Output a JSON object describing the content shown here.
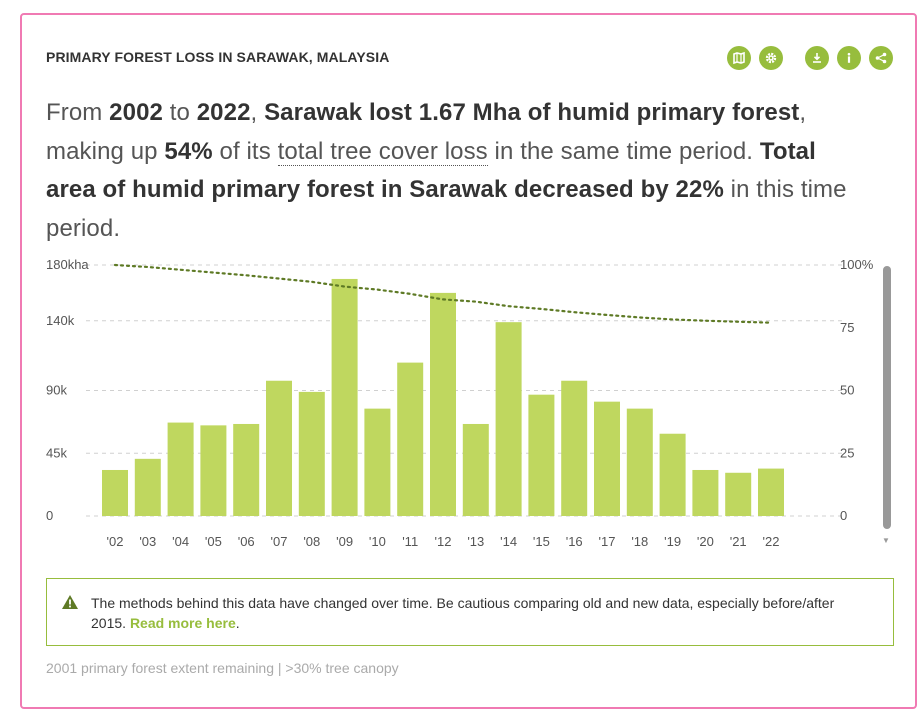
{
  "widget": {
    "title": "PRIMARY FOREST LOSS IN SARAWAK, MALAYSIA",
    "toolbar": [
      {
        "icon": "map-icon",
        "label": "map"
      },
      {
        "icon": "gear-icon",
        "label": "settings"
      },
      {
        "icon": "download-icon",
        "label": "download"
      },
      {
        "icon": "info-icon",
        "label": "info"
      },
      {
        "icon": "share-icon",
        "label": "share"
      }
    ]
  },
  "summary": {
    "p1": "From ",
    "b1": "2002",
    "p2": " to ",
    "b2": "2022",
    "p3": ", ",
    "b3": "Sarawak lost 1.67 Mha of humid primary forest",
    "p4": ", making up ",
    "b4": "54%",
    "p5": " of its ",
    "link": "total tree cover loss",
    "p6": " in the same time period. ",
    "b5": "Total area of humid primary forest in Sarawak decreased by 22%",
    "p7": " in this time period."
  },
  "chart_data": {
    "type": "bar",
    "categories": [
      "'02",
      "'03",
      "'04",
      "'05",
      "'06",
      "'07",
      "'08",
      "'09",
      "'10",
      "'11",
      "'12",
      "'13",
      "'14",
      "'15",
      "'16",
      "'17",
      "'18",
      "'19",
      "'20",
      "'21",
      "'22"
    ],
    "series": [
      {
        "name": "Primary forest loss",
        "axis": "left",
        "type": "bar",
        "color": "#bfd75f",
        "values": [
          33000,
          41000,
          67000,
          65000,
          66000,
          97000,
          89000,
          170000,
          77000,
          110000,
          160000,
          66000,
          139000,
          87000,
          97000,
          82000,
          77000,
          59000,
          33000,
          31000,
          34000
        ]
      },
      {
        "name": "Primary forest extent remaining",
        "axis": "right",
        "type": "line",
        "style": "dotted",
        "color": "#5e7a25",
        "values": [
          100,
          99.2,
          98.1,
          97,
          95.9,
          94.6,
          93.3,
          91.4,
          90.2,
          88.5,
          86.3,
          85.4,
          83.6,
          82.5,
          81.2,
          80.1,
          79.1,
          78.3,
          77.8,
          77.4,
          77
        ]
      }
    ],
    "y_left": {
      "ticks": [
        0,
        45000,
        90000,
        140000,
        180000
      ],
      "labels": [
        "0",
        "45k",
        "90k",
        "140k",
        "180kha"
      ],
      "ylim": [
        0,
        180000
      ]
    },
    "y_right": {
      "ticks": [
        0,
        25,
        50,
        75,
        100
      ],
      "labels": [
        "0",
        "25",
        "50",
        "75",
        "100%"
      ],
      "ylim": [
        0,
        100
      ]
    },
    "grid": true,
    "title": "",
    "xlabel": "",
    "ylabel": ""
  },
  "notice": {
    "text": "The methods behind this data have changed over time. Be cautious comparing old and new data, especially before/after 2015. ",
    "link": "Read more here",
    "end": "."
  },
  "footer": {
    "text": "2001 primary forest extent remaining | >30% tree canopy"
  },
  "colors": {
    "accent": "#97bd3d",
    "bar": "#bfd75f",
    "line": "#5e7a25",
    "border": "#f07ab3"
  }
}
